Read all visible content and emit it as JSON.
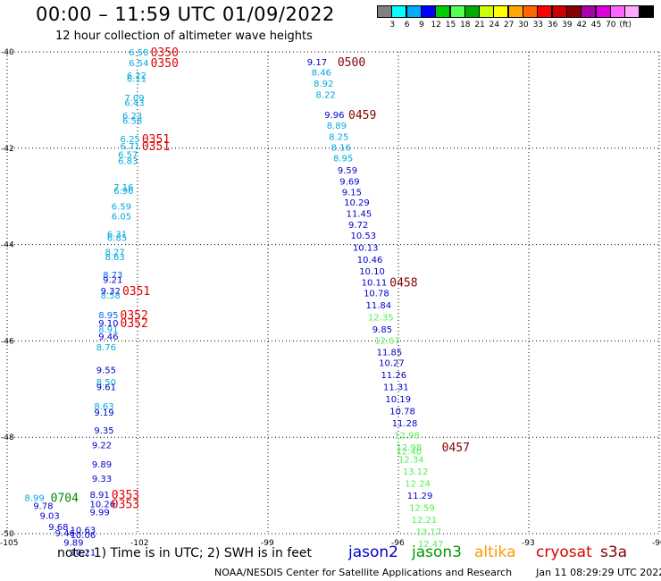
{
  "header": {
    "title": "00:00 – 11:59 UTC 01/09/2022",
    "subtitle": "12 hour collection of altimeter wave heights"
  },
  "colorbar": {
    "colors": [
      "#808080",
      "#00ffff",
      "#00aaff",
      "#0000ff",
      "#00cc00",
      "#55ff55",
      "#00aa00",
      "#ccff00",
      "#ffff00",
      "#ffaa00",
      "#ff6600",
      "#ff0000",
      "#cc0000",
      "#880000",
      "#aa00aa",
      "#dd00dd",
      "#ff66ff",
      "#ffaaff",
      "#000000"
    ],
    "labels": [
      "3",
      "6",
      "9",
      "12",
      "15",
      "18",
      "21",
      "24",
      "27",
      "30",
      "33",
      "36",
      "39",
      "42",
      "45",
      "70",
      "(ft)"
    ]
  },
  "axes": {
    "lon_ticks": [
      "-105",
      "-102",
      "-99",
      "-96",
      "-93",
      "-90"
    ],
    "lat_ticks": [
      "-40",
      "-42",
      "-44",
      "-46",
      "-48",
      "-50"
    ]
  },
  "satellites": [
    {
      "name": "jason2",
      "color": "#0000cc"
    },
    {
      "name": "jason3",
      "color": "#009900"
    },
    {
      "name": "altika",
      "color": "#ff9900"
    },
    {
      "name": "cryosat",
      "color": "#dd0000"
    },
    {
      "name": "s3a",
      "color": "#880000"
    }
  ],
  "footer": {
    "note": "note:  1) Time is in UTC; 2) SWH is in feet",
    "credit": "NOAA/NESDIS Center for Satellite Applications and Research",
    "timestamp": "Jan 11 08:29:29 UTC 2022"
  },
  "track_west": {
    "values": [
      {
        "lat": -40.0,
        "lon": -102.2,
        "v": "6.58",
        "c": "#00aadd"
      },
      {
        "lat": -40.22,
        "lon": -102.2,
        "v": "6.54",
        "c": "#00aadd"
      },
      {
        "lat": -40.48,
        "lon": -102.25,
        "v": "6.22",
        "c": "#00aadd"
      },
      {
        "lat": -40.55,
        "lon": -102.25,
        "v": "6.11",
        "c": "#00aadd"
      },
      {
        "lat": -40.95,
        "lon": -102.3,
        "v": "7.09",
        "c": "#00aadd"
      },
      {
        "lat": -41.05,
        "lon": -102.3,
        "v": "6.43",
        "c": "#00aadd"
      },
      {
        "lat": -41.32,
        "lon": -102.35,
        "v": "6.23",
        "c": "#00aadd"
      },
      {
        "lat": -41.42,
        "lon": -102.35,
        "v": "6.58",
        "c": "#00aadd"
      },
      {
        "lat": -41.8,
        "lon": -102.4,
        "v": "6.25",
        "c": "#00aadd"
      },
      {
        "lat": -41.95,
        "lon": -102.4,
        "v": "6.71",
        "c": "#00aadd"
      },
      {
        "lat": -42.12,
        "lon": -102.45,
        "v": "6.57",
        "c": "#00aadd"
      },
      {
        "lat": -42.25,
        "lon": -102.45,
        "v": "6.83",
        "c": "#00aadd"
      },
      {
        "lat": -42.8,
        "lon": -102.55,
        "v": "7.16",
        "c": "#00aadd"
      },
      {
        "lat": -42.88,
        "lon": -102.55,
        "v": "6.96",
        "c": "#00aadd"
      },
      {
        "lat": -43.2,
        "lon": -102.6,
        "v": "6.59",
        "c": "#00aadd"
      },
      {
        "lat": -43.4,
        "lon": -102.6,
        "v": "6.05",
        "c": "#00aadd"
      },
      {
        "lat": -43.78,
        "lon": -102.7,
        "v": "6.31",
        "c": "#00aadd"
      },
      {
        "lat": -43.85,
        "lon": -102.7,
        "v": "6.85",
        "c": "#00aadd"
      },
      {
        "lat": -44.15,
        "lon": -102.75,
        "v": "8.27",
        "c": "#00aadd"
      },
      {
        "lat": -44.25,
        "lon": -102.75,
        "v": "8.63",
        "c": "#00aadd"
      },
      {
        "lat": -44.62,
        "lon": -102.8,
        "v": "8.73",
        "c": "#0066ff"
      },
      {
        "lat": -44.72,
        "lon": -102.8,
        "v": "9.21",
        "c": "#0000cc"
      },
      {
        "lat": -44.95,
        "lon": -102.85,
        "v": "9.32",
        "c": "#0000cc"
      },
      {
        "lat": -45.05,
        "lon": -102.85,
        "v": "8.58",
        "c": "#00aadd"
      },
      {
        "lat": -45.45,
        "lon": -102.9,
        "v": "8.95",
        "c": "#0066ff"
      },
      {
        "lat": -45.62,
        "lon": -102.9,
        "v": "9.10",
        "c": "#0000cc"
      },
      {
        "lat": -45.75,
        "lon": -102.9,
        "v": "8.91",
        "c": "#00aadd"
      },
      {
        "lat": -45.9,
        "lon": -102.9,
        "v": "9.46",
        "c": "#0000cc"
      },
      {
        "lat": -46.12,
        "lon": -102.95,
        "v": "8.76",
        "c": "#00aadd"
      },
      {
        "lat": -46.6,
        "lon": -102.95,
        "v": "9.55",
        "c": "#0000cc"
      },
      {
        "lat": -46.85,
        "lon": -102.95,
        "v": "8.50",
        "c": "#00aadd"
      },
      {
        "lat": -46.95,
        "lon": -102.95,
        "v": "9.61",
        "c": "#0000cc"
      },
      {
        "lat": -47.35,
        "lon": -103.0,
        "v": "8.63",
        "c": "#00aadd"
      },
      {
        "lat": -47.48,
        "lon": -103.0,
        "v": "9.19",
        "c": "#0000cc"
      },
      {
        "lat": -47.85,
        "lon": -103.0,
        "v": "9.35",
        "c": "#0000cc"
      },
      {
        "lat": -48.15,
        "lon": -103.05,
        "v": "9.22",
        "c": "#0000cc"
      },
      {
        "lat": -48.55,
        "lon": -103.05,
        "v": "9.89",
        "c": "#0000cc"
      },
      {
        "lat": -48.85,
        "lon": -103.05,
        "v": "9.33",
        "c": "#0000cc"
      },
      {
        "lat": -49.18,
        "lon": -103.1,
        "v": "8.91",
        "c": "#0000cc"
      },
      {
        "lat": -49.38,
        "lon": -103.1,
        "v": "10.26",
        "c": "#0000cc"
      },
      {
        "lat": -49.55,
        "lon": -103.1,
        "v": "9.99",
        "c": "#0000cc"
      },
      {
        "lat": -49.62,
        "lon": -103.1,
        "v": "",
        "c": "#0000cc"
      }
    ],
    "tail": [
      {
        "lat": -49.25,
        "lon": -104.6,
        "v": "8.99",
        "c": "#00aadd"
      },
      {
        "lat": -49.42,
        "lon": -104.4,
        "v": "9.78",
        "c": "#0000cc"
      },
      {
        "lat": -49.62,
        "lon": -104.25,
        "v": "9.03",
        "c": "#0000cc"
      },
      {
        "lat": -49.85,
        "lon": -104.05,
        "v": "9.68",
        "c": "#0000cc"
      },
      {
        "lat": -49.98,
        "lon": -103.9,
        "v": "9.46",
        "c": "#0000cc"
      },
      {
        "lat": -49.92,
        "lon": -103.55,
        "v": "10.63",
        "c": "#0000cc"
      },
      {
        "lat": -50.02,
        "lon": -103.55,
        "v": "10.06",
        "c": "#0000cc"
      },
      {
        "lat": -50.18,
        "lon": -103.7,
        "v": "9.89",
        "c": "#0000cc"
      },
      {
        "lat": -50.38,
        "lon": -103.55,
        "v": "10.21",
        "c": "#0000cc"
      }
    ]
  },
  "track_east": {
    "values": [
      {
        "lat": -40.2,
        "lon": -98.1,
        "v": "9.17",
        "c": "#0000cc"
      },
      {
        "lat": -40.42,
        "lon": -98.0,
        "v": "8.46",
        "c": "#00aadd"
      },
      {
        "lat": -40.65,
        "lon": -97.95,
        "v": "8.92",
        "c": "#00aadd"
      },
      {
        "lat": -40.88,
        "lon": -97.9,
        "v": "8.22",
        "c": "#00aadd"
      },
      {
        "lat": -41.3,
        "lon": -97.7,
        "v": "9.96",
        "c": "#0000cc"
      },
      {
        "lat": -41.52,
        "lon": -97.65,
        "v": "8.89",
        "c": "#00aadd"
      },
      {
        "lat": -41.75,
        "lon": -97.6,
        "v": "8.25",
        "c": "#00aadd"
      },
      {
        "lat": -41.98,
        "lon": -97.55,
        "v": "8.16",
        "c": "#00aadd"
      },
      {
        "lat": -42.2,
        "lon": -97.5,
        "v": "8.95",
        "c": "#00aadd"
      },
      {
        "lat": -42.45,
        "lon": -97.4,
        "v": "9.59",
        "c": "#0000cc"
      },
      {
        "lat": -42.68,
        "lon": -97.35,
        "v": "9.69",
        "c": "#0000cc"
      },
      {
        "lat": -42.9,
        "lon": -97.3,
        "v": "9.15",
        "c": "#0000cc"
      },
      {
        "lat": -43.12,
        "lon": -97.25,
        "v": "10.29",
        "c": "#0000cc"
      },
      {
        "lat": -43.35,
        "lon": -97.2,
        "v": "11.45",
        "c": "#0000cc"
      },
      {
        "lat": -43.58,
        "lon": -97.15,
        "v": "9.72",
        "c": "#0000cc"
      },
      {
        "lat": -43.8,
        "lon": -97.1,
        "v": "10.53",
        "c": "#0000cc"
      },
      {
        "lat": -44.05,
        "lon": -97.05,
        "v": "10.13",
        "c": "#0000cc"
      },
      {
        "lat": -44.3,
        "lon": -96.95,
        "v": "10.46",
        "c": "#0000cc"
      },
      {
        "lat": -44.55,
        "lon": -96.9,
        "v": "10.10",
        "c": "#0000cc"
      },
      {
        "lat": -44.78,
        "lon": -96.85,
        "v": "10.11",
        "c": "#0000cc"
      },
      {
        "lat": -45.0,
        "lon": -96.8,
        "v": "10.78",
        "c": "#0000cc"
      },
      {
        "lat": -45.25,
        "lon": -96.75,
        "v": "11.84",
        "c": "#0000cc"
      },
      {
        "lat": -45.5,
        "lon": -96.7,
        "v": "12.35",
        "c": "#55ee55"
      },
      {
        "lat": -45.75,
        "lon": -96.6,
        "v": "9.85",
        "c": "#0000cc"
      },
      {
        "lat": -45.98,
        "lon": -96.55,
        "v": "12.67",
        "c": "#55ee55"
      },
      {
        "lat": -46.22,
        "lon": -96.5,
        "v": "11.85",
        "c": "#0000cc"
      },
      {
        "lat": -46.45,
        "lon": -96.45,
        "v": "10.27",
        "c": "#0000cc"
      },
      {
        "lat": -46.7,
        "lon": -96.4,
        "v": "11.26",
        "c": "#0000cc"
      },
      {
        "lat": -46.95,
        "lon": -96.35,
        "v": "11.31",
        "c": "#0000cc"
      },
      {
        "lat": -47.2,
        "lon": -96.3,
        "v": "10.19",
        "c": "#0000cc"
      },
      {
        "lat": -47.45,
        "lon": -96.2,
        "v": "10.78",
        "c": "#0000cc"
      },
      {
        "lat": -47.7,
        "lon": -96.15,
        "v": "11.28",
        "c": "#0000cc"
      },
      {
        "lat": -47.95,
        "lon": -96.1,
        "v": "12.98",
        "c": "#55ee55"
      },
      {
        "lat": -48.2,
        "lon": -96.05,
        "v": "12.98",
        "c": "#55ee55"
      },
      {
        "lat": -48.28,
        "lon": -96.05,
        "v": "12.40",
        "c": "#55ee55"
      },
      {
        "lat": -48.45,
        "lon": -96.0,
        "v": "12.34",
        "c": "#55ee55"
      },
      {
        "lat": -48.7,
        "lon": -95.9,
        "v": "13.12",
        "c": "#55ee55"
      },
      {
        "lat": -48.95,
        "lon": -95.85,
        "v": "12.24",
        "c": "#55ee55"
      },
      {
        "lat": -49.2,
        "lon": -95.8,
        "v": "11.29",
        "c": "#0000cc"
      },
      {
        "lat": -49.45,
        "lon": -95.75,
        "v": "12.59",
        "c": "#55ee55"
      },
      {
        "lat": -49.7,
        "lon": -95.7,
        "v": "12.21",
        "c": "#55ee55"
      },
      {
        "lat": -49.95,
        "lon": -95.6,
        "v": "13.17",
        "c": "#55ee55"
      },
      {
        "lat": -50.2,
        "lon": -95.55,
        "v": "12.47",
        "c": "#55ee55"
      }
    ]
  },
  "times": [
    {
      "lat": -40.0,
      "lon": -101.7,
      "t": "0350",
      "c": "#dd0000"
    },
    {
      "lat": -40.22,
      "lon": -101.7,
      "t": "0350",
      "c": "#dd0000"
    },
    {
      "lat": -41.8,
      "lon": -101.9,
      "t": "0351",
      "c": "#dd0000"
    },
    {
      "lat": -41.95,
      "lon": -101.9,
      "t": "0351",
      "c": "#dd0000"
    },
    {
      "lat": -44.95,
      "lon": -102.35,
      "t": "0351",
      "c": "#dd0000"
    },
    {
      "lat": -45.45,
      "lon": -102.4,
      "t": "0352",
      "c": "#dd0000"
    },
    {
      "lat": -45.62,
      "lon": -102.4,
      "t": "0352",
      "c": "#dd0000"
    },
    {
      "lat": -49.18,
      "lon": -102.6,
      "t": "0353",
      "c": "#dd0000"
    },
    {
      "lat": -49.38,
      "lon": -102.6,
      "t": "0353",
      "c": "#dd0000"
    },
    {
      "lat": -49.25,
      "lon": -104.0,
      "t": "0704",
      "c": "#008800"
    },
    {
      "lat": -40.2,
      "lon": -97.4,
      "t": "0500",
      "c": "#880000"
    },
    {
      "lat": -41.3,
      "lon": -97.15,
      "t": "0459",
      "c": "#880000"
    },
    {
      "lat": -44.78,
      "lon": -96.2,
      "t": "0458",
      "c": "#880000"
    },
    {
      "lat": -48.2,
      "lon": -95.0,
      "t": "0457",
      "c": "#880000"
    }
  ]
}
